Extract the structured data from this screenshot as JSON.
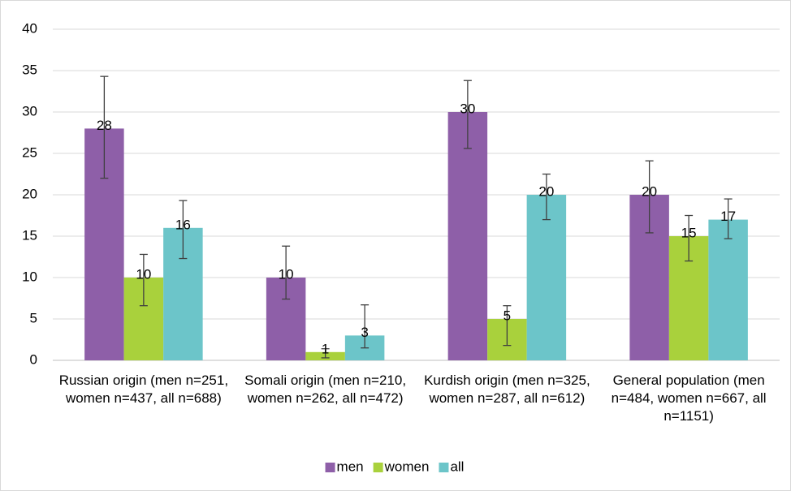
{
  "chart_data": {
    "type": "bar",
    "categories": [
      "Russian origin  (men n=251, women n=437, all n=688)",
      "Somali origin (men n=210, women n=262, all n=472)",
      "Kurdish origin (men n=325, women n=287, all n=612)",
      "General population (men n=484, women n=667, all n=1151)"
    ],
    "series": [
      {
        "name": "men",
        "color": "#8e5fa8",
        "values": [
          28,
          10,
          30,
          20
        ],
        "ci_low": [
          22,
          7.4,
          25.6,
          15.4
        ],
        "ci_high": [
          34.3,
          13.8,
          33.8,
          24.1
        ]
      },
      {
        "name": "women",
        "color": "#a9d13c",
        "values": [
          10,
          1,
          5,
          15
        ],
        "ci_low": [
          6.6,
          0.3,
          1.8,
          12
        ],
        "ci_high": [
          12.8,
          1.4,
          6.6,
          17.5
        ]
      },
      {
        "name": "all",
        "color": "#6cc5c9",
        "values": [
          16,
          3,
          20,
          17
        ],
        "ci_low": [
          12.3,
          1.5,
          17,
          14.7
        ],
        "ci_high": [
          19.3,
          6.7,
          22.5,
          19.5
        ]
      }
    ],
    "ylim": [
      0,
      40
    ],
    "yticks": [
      0,
      5,
      10,
      15,
      20,
      25,
      30,
      35,
      40
    ],
    "grid": true,
    "legend": "bottom"
  }
}
